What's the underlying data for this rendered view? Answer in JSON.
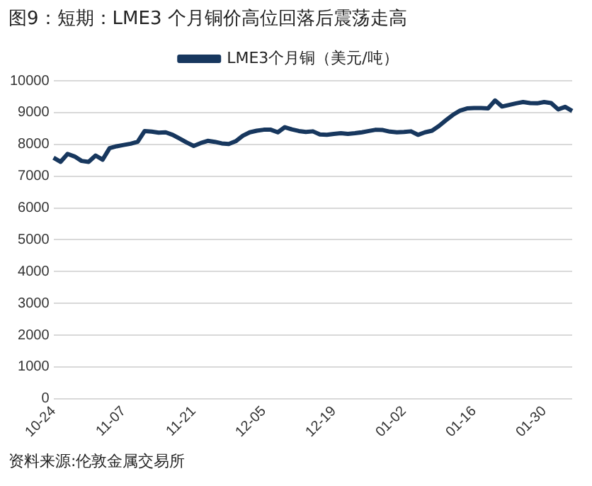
{
  "chart_data": {
    "type": "line",
    "title": "图9：短期：LME3 个月铜价高位回落后震荡走高",
    "categories": [
      "10-24",
      null,
      null,
      null,
      null,
      null,
      null,
      null,
      null,
      null,
      "11-07",
      null,
      null,
      null,
      null,
      null,
      null,
      null,
      null,
      null,
      "11-21",
      null,
      null,
      null,
      null,
      null,
      null,
      null,
      null,
      null,
      "12-05",
      null,
      null,
      null,
      null,
      null,
      null,
      null,
      null,
      null,
      "12-19",
      null,
      null,
      null,
      null,
      null,
      null,
      null,
      null,
      null,
      "01-02",
      null,
      null,
      null,
      null,
      null,
      null,
      null,
      null,
      null,
      "01-16",
      null,
      null,
      null,
      null,
      null,
      null,
      null,
      null,
      null,
      "01-30",
      null,
      null,
      null,
      null
    ],
    "series": [
      {
        "name": "LME3个月铜（美元/吨）",
        "color": "#17375e",
        "values": [
          7580,
          7450,
          7700,
          7620,
          7480,
          7450,
          7650,
          7520,
          7880,
          7940,
          7980,
          8020,
          8080,
          8420,
          8400,
          8370,
          8380,
          8300,
          8180,
          8060,
          7950,
          8040,
          8110,
          8080,
          8030,
          8010,
          8100,
          8270,
          8380,
          8430,
          8460,
          8460,
          8380,
          8540,
          8470,
          8420,
          8390,
          8410,
          8310,
          8300,
          8330,
          8350,
          8330,
          8350,
          8380,
          8420,
          8460,
          8450,
          8400,
          8380,
          8390,
          8410,
          8300,
          8380,
          8430,
          8580,
          8760,
          8930,
          9060,
          9130,
          9140,
          9140,
          9130,
          9380,
          9190,
          9240,
          9290,
          9330,
          9300,
          9290,
          9330,
          9300,
          9100,
          9180,
          9050
        ]
      }
    ],
    "ylim": [
      0,
      10000
    ],
    "yticks": [
      0,
      1000,
      2000,
      3000,
      4000,
      5000,
      6000,
      7000,
      8000,
      9000,
      10000
    ],
    "grid": "y",
    "legend": "top",
    "marker": "none",
    "line_style": "solid",
    "annotations": [
      "资料来源:伦敦金属交易所"
    ]
  }
}
